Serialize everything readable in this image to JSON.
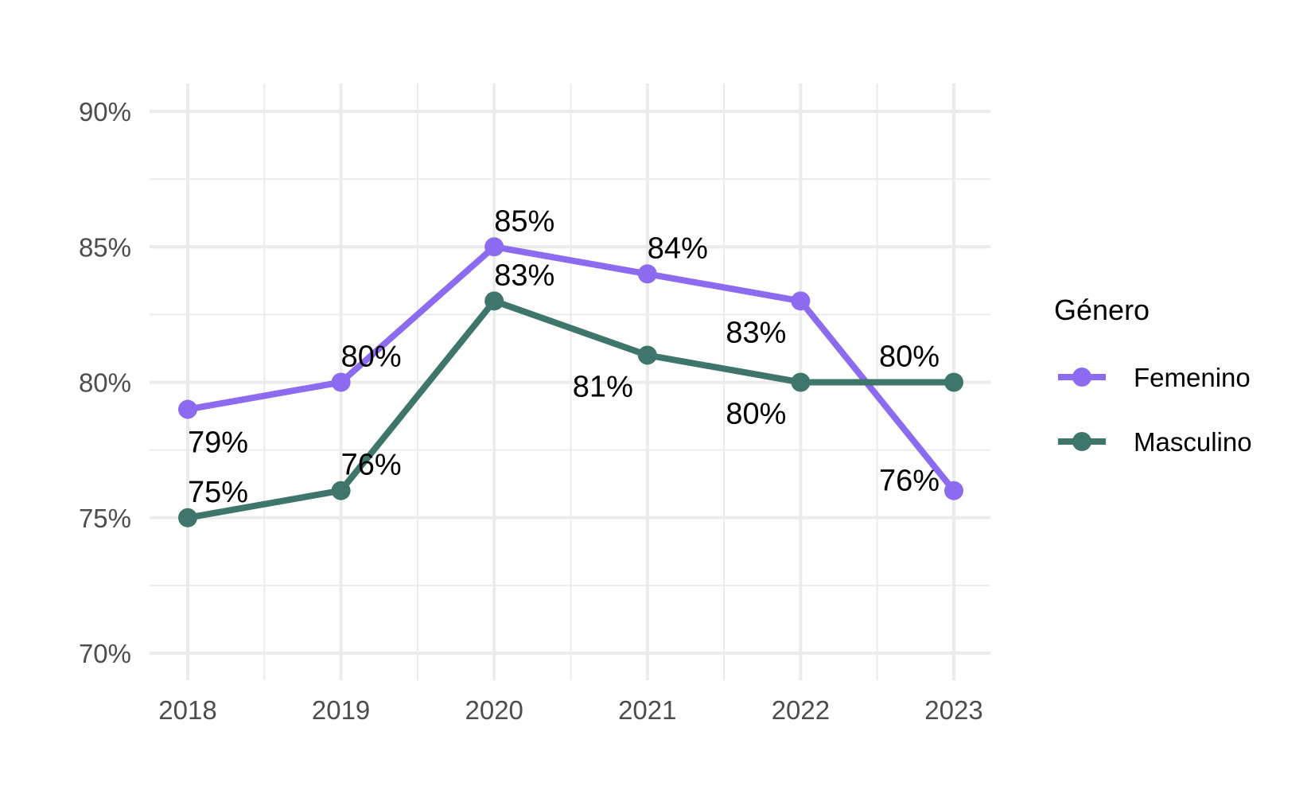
{
  "chart_data": {
    "type": "line",
    "title": "",
    "xlabel": "",
    "ylabel": "",
    "x": [
      "2018",
      "2019",
      "2020",
      "2021",
      "2022",
      "2023"
    ],
    "y_ticks": [
      "70%",
      "75%",
      "80%",
      "85%",
      "90%"
    ],
    "ylim": [
      70,
      90
    ],
    "grid": true,
    "legend": {
      "title": "Género",
      "position": "right"
    },
    "series": [
      {
        "name": "Femenino",
        "color": "#8c6bf0",
        "values": [
          79,
          80,
          85,
          84,
          83,
          76
        ],
        "labels": [
          "79%",
          "80%",
          "85%",
          "84%",
          "83%",
          "76%"
        ]
      },
      {
        "name": "Masculino",
        "color": "#3f766b",
        "values": [
          75,
          76,
          83,
          81,
          80,
          80
        ],
        "labels": [
          "75%",
          "76%",
          "83%",
          "81%",
          "80%",
          "80%"
        ]
      }
    ]
  }
}
